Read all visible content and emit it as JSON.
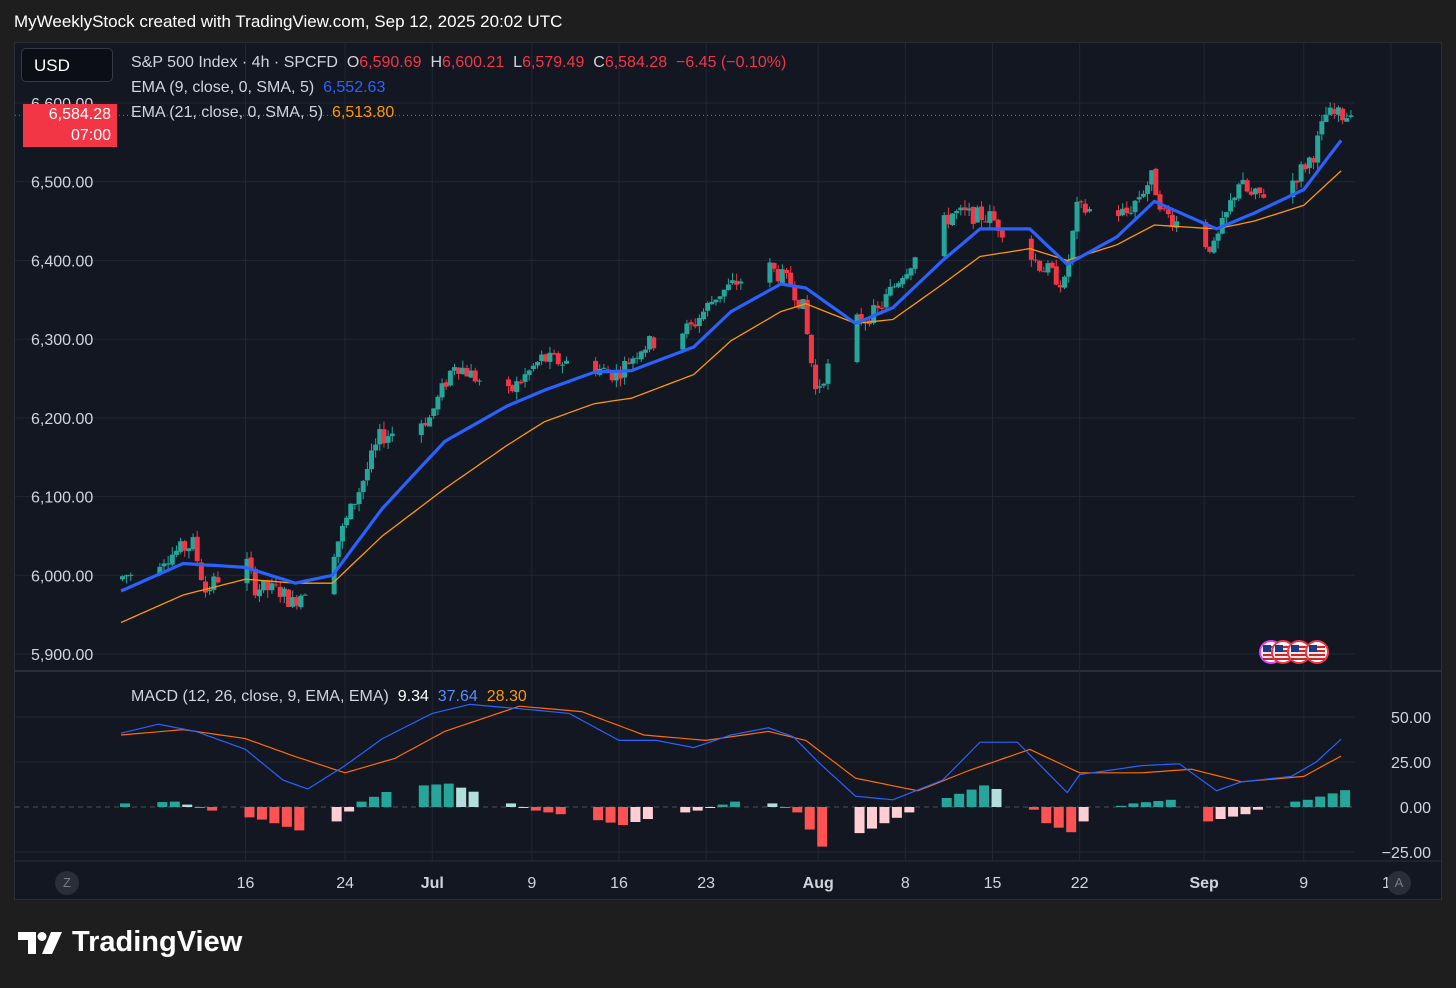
{
  "header": {
    "text": "MyWeeklyStock created with TradingView.com, Sep 12, 2025 20:02 UTC"
  },
  "currency": "USD",
  "legend": {
    "symbol": "S&P 500 Index · 4h · SPCFD",
    "o_label": "O",
    "o_value": "6,590.69",
    "h_label": "H",
    "h_value": "6,600.21",
    "l_label": "L",
    "l_value": "6,579.49",
    "c_label": "C",
    "c_value": "6,584.28",
    "change": "−6.45 (−0.10%)",
    "ema9_label": "EMA (9, close, 0, SMA, 5)",
    "ema9_value": "6,552.63",
    "ema21_label": "EMA (21, close, 0, SMA, 5)",
    "ema21_value": "6,513.80",
    "macd_label": "MACD (12, 26, close, 9, EMA, EMA)",
    "macd_hist": "9.34",
    "macd_line": "37.64",
    "macd_signal": "28.30"
  },
  "price_tag": {
    "price": "6,584.28",
    "time": "07:00"
  },
  "corners": {
    "left": "Z",
    "right": "A"
  },
  "logo": {
    "text": "TradingView"
  },
  "colors": {
    "up": "#26a69a",
    "down": "#f23645",
    "ema9": "#2962ff",
    "ema21": "#ff9800",
    "macd": "#2962ff",
    "signal": "#ff6d00",
    "hist_up": "#26a69a",
    "hist_up_light": "#b2dfdb",
    "hist_down": "#ff5252",
    "hist_down_light": "#ffcdd2"
  },
  "chart_data": {
    "type": "candlestick",
    "timeframe": "4h",
    "y_ticks": [
      "6,600.00",
      "6,500.00",
      "6,400.00",
      "6,300.00",
      "6,200.00",
      "6,100.00",
      "6,000.00",
      "5,900.00"
    ],
    "y_range": [
      5900,
      6600
    ],
    "x_ticks": [
      {
        "label": "16",
        "date": "2025-06-16",
        "bold": false
      },
      {
        "label": "24",
        "date": "2025-06-24",
        "bold": false
      },
      {
        "label": "Jul",
        "date": "2025-07-01",
        "bold": true
      },
      {
        "label": "9",
        "date": "2025-07-09",
        "bold": false
      },
      {
        "label": "16",
        "date": "2025-07-16",
        "bold": false
      },
      {
        "label": "23",
        "date": "2025-07-23",
        "bold": false
      },
      {
        "label": "Aug",
        "date": "2025-08-01",
        "bold": true
      },
      {
        "label": "8",
        "date": "2025-08-08",
        "bold": false
      },
      {
        "label": "15",
        "date": "2025-08-15",
        "bold": false
      },
      {
        "label": "22",
        "date": "2025-08-22",
        "bold": false
      },
      {
        "label": "Sep",
        "date": "2025-09-01",
        "bold": true
      },
      {
        "label": "9",
        "date": "2025-09-09",
        "bold": false
      },
      {
        "label": "16",
        "date": "2025-09-16",
        "bold": false
      }
    ],
    "price_anchors": [
      {
        "date": "2025-06-06",
        "price": 5995
      },
      {
        "date": "2025-06-10",
        "price": 6025
      },
      {
        "date": "2025-06-12",
        "price": 6040
      },
      {
        "date": "2025-06-13",
        "price": 5980
      },
      {
        "date": "2025-06-16",
        "price": 6030
      },
      {
        "date": "2025-06-17",
        "price": 5985
      },
      {
        "date": "2025-06-19",
        "price": 5980
      },
      {
        "date": "2025-06-20",
        "price": 5965
      },
      {
        "date": "2025-06-23",
        "price": 6020
      },
      {
        "date": "2025-06-25",
        "price": 6095
      },
      {
        "date": "2025-06-27",
        "price": 6175
      },
      {
        "date": "2025-07-01",
        "price": 6200
      },
      {
        "date": "2025-07-03",
        "price": 6270
      },
      {
        "date": "2025-07-07",
        "price": 6225
      },
      {
        "date": "2025-07-10",
        "price": 6275
      },
      {
        "date": "2025-07-14",
        "price": 6265
      },
      {
        "date": "2025-07-16",
        "price": 6255
      },
      {
        "date": "2025-07-18",
        "price": 6290
      },
      {
        "date": "2025-07-22",
        "price": 6315
      },
      {
        "date": "2025-07-24",
        "price": 6355
      },
      {
        "date": "2025-07-28",
        "price": 6395
      },
      {
        "date": "2025-07-30",
        "price": 6370
      },
      {
        "date": "2025-07-31",
        "price": 6340
      },
      {
        "date": "2025-08-01",
        "price": 6235
      },
      {
        "date": "2025-08-04",
        "price": 6320
      },
      {
        "date": "2025-08-06",
        "price": 6335
      },
      {
        "date": "2025-08-08",
        "price": 6385
      },
      {
        "date": "2025-08-12",
        "price": 6460
      },
      {
        "date": "2025-08-15",
        "price": 6455
      },
      {
        "date": "2025-08-19",
        "price": 6395
      },
      {
        "date": "2025-08-21",
        "price": 6370
      },
      {
        "date": "2025-08-22",
        "price": 6465
      },
      {
        "date": "2025-08-26",
        "price": 6460
      },
      {
        "date": "2025-08-28",
        "price": 6505
      },
      {
        "date": "2025-08-29",
        "price": 6460
      },
      {
        "date": "2025-09-02",
        "price": 6415
      },
      {
        "date": "2025-09-04",
        "price": 6500
      },
      {
        "date": "2025-09-05",
        "price": 6480
      },
      {
        "date": "2025-09-08",
        "price": 6495
      },
      {
        "date": "2025-09-10",
        "price": 6535
      },
      {
        "date": "2025-09-11",
        "price": 6585
      },
      {
        "date": "2025-09-12",
        "price": 6584.28
      }
    ],
    "ema9_anchors": [
      {
        "date": "2025-06-06",
        "value": 5980
      },
      {
        "date": "2025-06-11",
        "value": 6015
      },
      {
        "date": "2025-06-16",
        "value": 6010
      },
      {
        "date": "2025-06-20",
        "value": 5990
      },
      {
        "date": "2025-06-23",
        "value": 6000
      },
      {
        "date": "2025-06-27",
        "value": 6085
      },
      {
        "date": "2025-07-02",
        "value": 6170
      },
      {
        "date": "2025-07-07",
        "value": 6215
      },
      {
        "date": "2025-07-10",
        "value": 6235
      },
      {
        "date": "2025-07-14",
        "value": 6258
      },
      {
        "date": "2025-07-17",
        "value": 6260
      },
      {
        "date": "2025-07-22",
        "value": 6290
      },
      {
        "date": "2025-07-25",
        "value": 6335
      },
      {
        "date": "2025-07-29",
        "value": 6370
      },
      {
        "date": "2025-07-31",
        "value": 6365
      },
      {
        "date": "2025-08-04",
        "value": 6320
      },
      {
        "date": "2025-08-07",
        "value": 6340
      },
      {
        "date": "2025-08-11",
        "value": 6400
      },
      {
        "date": "2025-08-14",
        "value": 6440
      },
      {
        "date": "2025-08-18",
        "value": 6440
      },
      {
        "date": "2025-08-21",
        "value": 6395
      },
      {
        "date": "2025-08-25",
        "value": 6430
      },
      {
        "date": "2025-08-28",
        "value": 6475
      },
      {
        "date": "2025-09-02",
        "value": 6440
      },
      {
        "date": "2025-09-05",
        "value": 6460
      },
      {
        "date": "2025-09-09",
        "value": 6490
      },
      {
        "date": "2025-09-12",
        "value": 6552.63
      }
    ],
    "ema21_anchors": [
      {
        "date": "2025-06-06",
        "value": 5940
      },
      {
        "date": "2025-06-11",
        "value": 5975
      },
      {
        "date": "2025-06-16",
        "value": 5995
      },
      {
        "date": "2025-06-20",
        "value": 5990
      },
      {
        "date": "2025-06-23",
        "value": 5990
      },
      {
        "date": "2025-06-27",
        "value": 6050
      },
      {
        "date": "2025-07-02",
        "value": 6110
      },
      {
        "date": "2025-07-07",
        "value": 6165
      },
      {
        "date": "2025-07-10",
        "value": 6195
      },
      {
        "date": "2025-07-14",
        "value": 6218
      },
      {
        "date": "2025-07-17",
        "value": 6225
      },
      {
        "date": "2025-07-22",
        "value": 6255
      },
      {
        "date": "2025-07-25",
        "value": 6298
      },
      {
        "date": "2025-07-29",
        "value": 6335
      },
      {
        "date": "2025-07-31",
        "value": 6345
      },
      {
        "date": "2025-08-04",
        "value": 6320
      },
      {
        "date": "2025-08-07",
        "value": 6325
      },
      {
        "date": "2025-08-11",
        "value": 6370
      },
      {
        "date": "2025-08-14",
        "value": 6405
      },
      {
        "date": "2025-08-18",
        "value": 6415
      },
      {
        "date": "2025-08-21",
        "value": 6400
      },
      {
        "date": "2025-08-25",
        "value": 6420
      },
      {
        "date": "2025-08-28",
        "value": 6445
      },
      {
        "date": "2025-09-02",
        "value": 6440
      },
      {
        "date": "2025-09-05",
        "value": 6450
      },
      {
        "date": "2025-09-09",
        "value": 6470
      },
      {
        "date": "2025-09-12",
        "value": 6513.8
      }
    ],
    "macd": {
      "y_ticks": [
        "50.00",
        "25.00",
        "0.00",
        "−25.00"
      ],
      "y_range": [
        -25,
        50
      ],
      "macd_anchors": [
        {
          "date": "2025-06-06",
          "value": 41
        },
        {
          "date": "2025-06-09",
          "value": 46
        },
        {
          "date": "2025-06-12",
          "value": 42
        },
        {
          "date": "2025-06-16",
          "value": 32
        },
        {
          "date": "2025-06-19",
          "value": 15
        },
        {
          "date": "2025-06-21",
          "value": 10
        },
        {
          "date": "2025-06-24",
          "value": 23
        },
        {
          "date": "2025-06-27",
          "value": 38
        },
        {
          "date": "2025-07-01",
          "value": 52
        },
        {
          "date": "2025-07-04",
          "value": 57
        },
        {
          "date": "2025-07-09",
          "value": 54
        },
        {
          "date": "2025-07-12",
          "value": 52
        },
        {
          "date": "2025-07-16",
          "value": 37
        },
        {
          "date": "2025-07-19",
          "value": 37
        },
        {
          "date": "2025-07-22",
          "value": 33
        },
        {
          "date": "2025-07-25",
          "value": 40
        },
        {
          "date": "2025-07-28",
          "value": 44
        },
        {
          "date": "2025-07-30",
          "value": 39
        },
        {
          "date": "2025-08-01",
          "value": 25
        },
        {
          "date": "2025-08-04",
          "value": 6
        },
        {
          "date": "2025-08-07",
          "value": 4
        },
        {
          "date": "2025-08-11",
          "value": 15
        },
        {
          "date": "2025-08-14",
          "value": 36
        },
        {
          "date": "2025-08-17",
          "value": 36
        },
        {
          "date": "2025-08-21",
          "value": 8
        },
        {
          "date": "2025-08-22",
          "value": 18
        },
        {
          "date": "2025-08-27",
          "value": 23
        },
        {
          "date": "2025-08-30",
          "value": 24
        },
        {
          "date": "2025-09-02",
          "value": 9
        },
        {
          "date": "2025-09-04",
          "value": 14
        },
        {
          "date": "2025-09-08",
          "value": 17
        },
        {
          "date": "2025-09-10",
          "value": 25
        },
        {
          "date": "2025-09-12",
          "value": 37.64
        }
      ],
      "signal_anchors": [
        {
          "date": "2025-06-06",
          "value": 40
        },
        {
          "date": "2025-06-11",
          "value": 43
        },
        {
          "date": "2025-06-16",
          "value": 38
        },
        {
          "date": "2025-06-20",
          "value": 28
        },
        {
          "date": "2025-06-24",
          "value": 19
        },
        {
          "date": "2025-06-28",
          "value": 27
        },
        {
          "date": "2025-07-02",
          "value": 42
        },
        {
          "date": "2025-07-08",
          "value": 56
        },
        {
          "date": "2025-07-13",
          "value": 53
        },
        {
          "date": "2025-07-18",
          "value": 40
        },
        {
          "date": "2025-07-23",
          "value": 37
        },
        {
          "date": "2025-07-28",
          "value": 42
        },
        {
          "date": "2025-07-31",
          "value": 37
        },
        {
          "date": "2025-08-04",
          "value": 16
        },
        {
          "date": "2025-08-09",
          "value": 9
        },
        {
          "date": "2025-08-13",
          "value": 20
        },
        {
          "date": "2025-08-18",
          "value": 32
        },
        {
          "date": "2025-08-22",
          "value": 19
        },
        {
          "date": "2025-08-27",
          "value": 19
        },
        {
          "date": "2025-08-31",
          "value": 21
        },
        {
          "date": "2025-09-04",
          "value": 14
        },
        {
          "date": "2025-09-09",
          "value": 17
        },
        {
          "date": "2025-09-12",
          "value": 28.3
        }
      ],
      "hist_anchors": [
        {
          "date": "2025-06-06",
          "value": 2
        },
        {
          "date": "2025-06-10",
          "value": 3
        },
        {
          "date": "2025-06-13",
          "value": -2
        },
        {
          "date": "2025-06-17",
          "value": -7
        },
        {
          "date": "2025-06-20",
          "value": -13
        },
        {
          "date": "2025-06-23",
          "value": -8
        },
        {
          "date": "2025-06-25",
          "value": 3
        },
        {
          "date": "2025-06-28",
          "value": 11
        },
        {
          "date": "2025-07-02",
          "value": 13
        },
        {
          "date": "2025-07-06",
          "value": 4
        },
        {
          "date": "2025-07-09",
          "value": -2
        },
        {
          "date": "2025-07-13",
          "value": -6
        },
        {
          "date": "2025-07-16",
          "value": -10
        },
        {
          "date": "2025-07-19",
          "value": -5
        },
        {
          "date": "2025-07-22",
          "value": -2
        },
        {
          "date": "2025-07-25",
          "value": 3
        },
        {
          "date": "2025-07-28",
          "value": 2
        },
        {
          "date": "2025-07-30",
          "value": -3
        },
        {
          "date": "2025-08-01",
          "value": -22
        },
        {
          "date": "2025-08-05",
          "value": -12
        },
        {
          "date": "2025-08-08",
          "value": -3
        },
        {
          "date": "2025-08-11",
          "value": 5
        },
        {
          "date": "2025-08-14",
          "value": 12
        },
        {
          "date": "2025-08-17",
          "value": 6
        },
        {
          "date": "2025-08-19",
          "value": -9
        },
        {
          "date": "2025-08-21",
          "value": -14
        },
        {
          "date": "2025-08-23",
          "value": -2
        },
        {
          "date": "2025-08-26",
          "value": 2
        },
        {
          "date": "2025-08-29",
          "value": 4
        },
        {
          "date": "2025-09-01",
          "value": -8
        },
        {
          "date": "2025-09-04",
          "value": -4
        },
        {
          "date": "2025-09-06",
          "value": 1
        },
        {
          "date": "2025-09-09",
          "value": 4
        },
        {
          "date": "2025-09-12",
          "value": 9.34
        }
      ]
    }
  }
}
